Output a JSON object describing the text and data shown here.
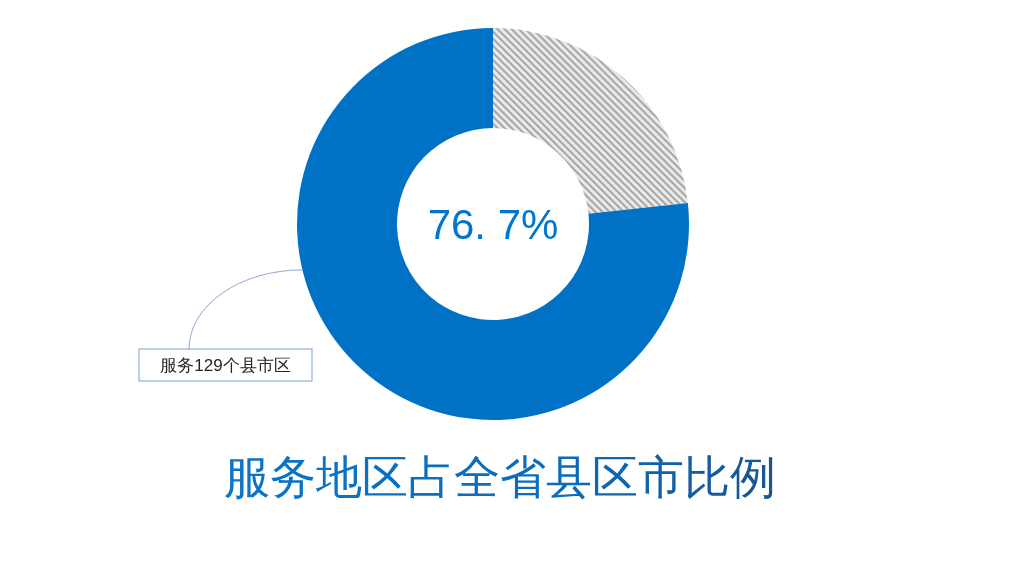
{
  "chart_data": {
    "type": "donut",
    "title": "服务地区占全省县区市比例",
    "categories": [
      null,
      "服务129个县市区"
    ],
    "values": [
      23.3,
      76.7
    ],
    "colors": [
      "#a6a6a6",
      "#0072c6"
    ],
    "annotations": [
      "76. 7%"
    ]
  }
}
